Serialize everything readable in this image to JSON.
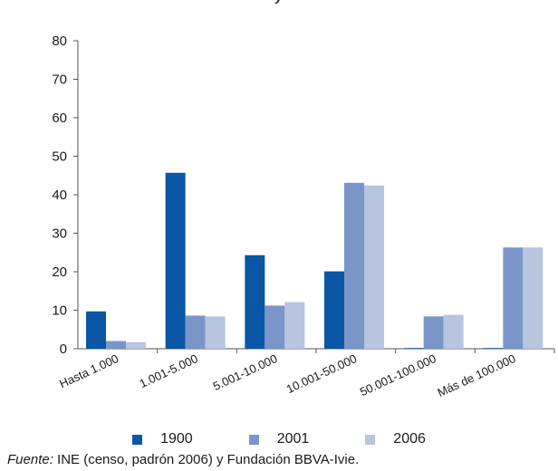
{
  "title_fragment": "y",
  "chart_data": {
    "type": "bar",
    "title": "",
    "xlabel": "",
    "ylabel": "",
    "ylim": [
      0,
      80
    ],
    "yticks": [
      0,
      10,
      20,
      30,
      40,
      50,
      60,
      70,
      80
    ],
    "grid": false,
    "legend_position": "bottom",
    "categories": [
      "Hasta 1.000",
      "1.001-5.000",
      "5.001-10.000",
      "10.001-50.000",
      "50.001-100.000",
      "Más de 100.000"
    ],
    "series": [
      {
        "name": "1900",
        "color": "#0a57a6",
        "values": [
          9.7,
          45.7,
          24.3,
          20.1,
          0,
          0
        ]
      },
      {
        "name": "2001",
        "color": "#7a96c8",
        "values": [
          2.0,
          8.6,
          11.2,
          43.1,
          8.4,
          26.3
        ]
      },
      {
        "name": "2006",
        "color": "#b8c5e0",
        "values": [
          1.7,
          8.4,
          12.1,
          42.4,
          8.8,
          26.3
        ]
      }
    ]
  },
  "source": {
    "label": "Fuente:",
    "text": " INE (censo, padrón 2006) y Fundación BBVA-Ivie."
  }
}
